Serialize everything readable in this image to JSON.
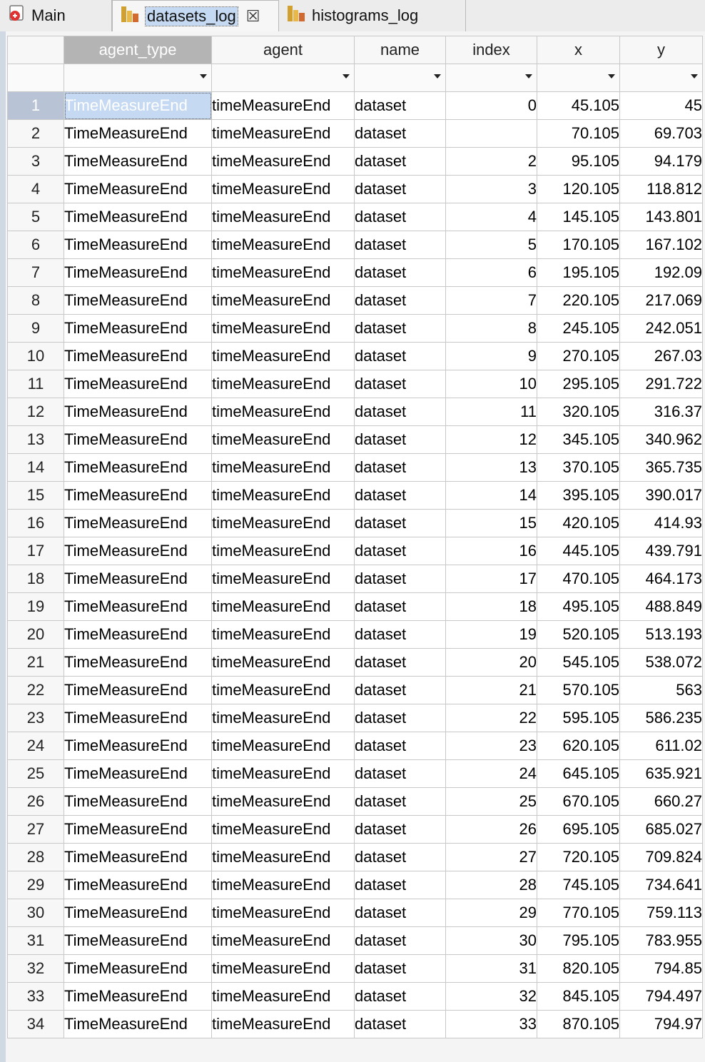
{
  "tabs": [
    {
      "label": "Main"
    },
    {
      "label": "datasets_log",
      "close": "☒"
    },
    {
      "label": "histograms_log"
    }
  ],
  "columns": [
    "agent_type",
    "agent",
    "name",
    "index",
    "x",
    "y"
  ],
  "rows": [
    [
      "TimeMeasureEnd",
      "timeMeasureEnd",
      "dataset",
      "0",
      "45.105",
      "45"
    ],
    [
      "TimeMeasureEnd",
      "timeMeasureEnd",
      "dataset",
      "",
      "70.105",
      "69.703"
    ],
    [
      "TimeMeasureEnd",
      "timeMeasureEnd",
      "dataset",
      "2",
      "95.105",
      "94.179"
    ],
    [
      "TimeMeasureEnd",
      "timeMeasureEnd",
      "dataset",
      "3",
      "120.105",
      "118.812"
    ],
    [
      "TimeMeasureEnd",
      "timeMeasureEnd",
      "dataset",
      "4",
      "145.105",
      "143.801"
    ],
    [
      "TimeMeasureEnd",
      "timeMeasureEnd",
      "dataset",
      "5",
      "170.105",
      "167.102"
    ],
    [
      "TimeMeasureEnd",
      "timeMeasureEnd",
      "dataset",
      "6",
      "195.105",
      "192.09"
    ],
    [
      "TimeMeasureEnd",
      "timeMeasureEnd",
      "dataset",
      "7",
      "220.105",
      "217.069"
    ],
    [
      "TimeMeasureEnd",
      "timeMeasureEnd",
      "dataset",
      "8",
      "245.105",
      "242.051"
    ],
    [
      "TimeMeasureEnd",
      "timeMeasureEnd",
      "dataset",
      "9",
      "270.105",
      "267.03"
    ],
    [
      "TimeMeasureEnd",
      "timeMeasureEnd",
      "dataset",
      "10",
      "295.105",
      "291.722"
    ],
    [
      "TimeMeasureEnd",
      "timeMeasureEnd",
      "dataset",
      "11",
      "320.105",
      "316.37"
    ],
    [
      "TimeMeasureEnd",
      "timeMeasureEnd",
      "dataset",
      "12",
      "345.105",
      "340.962"
    ],
    [
      "TimeMeasureEnd",
      "timeMeasureEnd",
      "dataset",
      "13",
      "370.105",
      "365.735"
    ],
    [
      "TimeMeasureEnd",
      "timeMeasureEnd",
      "dataset",
      "14",
      "395.105",
      "390.017"
    ],
    [
      "TimeMeasureEnd",
      "timeMeasureEnd",
      "dataset",
      "15",
      "420.105",
      "414.93"
    ],
    [
      "TimeMeasureEnd",
      "timeMeasureEnd",
      "dataset",
      "16",
      "445.105",
      "439.791"
    ],
    [
      "TimeMeasureEnd",
      "timeMeasureEnd",
      "dataset",
      "17",
      "470.105",
      "464.173"
    ],
    [
      "TimeMeasureEnd",
      "timeMeasureEnd",
      "dataset",
      "18",
      "495.105",
      "488.849"
    ],
    [
      "TimeMeasureEnd",
      "timeMeasureEnd",
      "dataset",
      "19",
      "520.105",
      "513.193"
    ],
    [
      "TimeMeasureEnd",
      "timeMeasureEnd",
      "dataset",
      "20",
      "545.105",
      "538.072"
    ],
    [
      "TimeMeasureEnd",
      "timeMeasureEnd",
      "dataset",
      "21",
      "570.105",
      "563"
    ],
    [
      "TimeMeasureEnd",
      "timeMeasureEnd",
      "dataset",
      "22",
      "595.105",
      "586.235"
    ],
    [
      "TimeMeasureEnd",
      "timeMeasureEnd",
      "dataset",
      "23",
      "620.105",
      "611.02"
    ],
    [
      "TimeMeasureEnd",
      "timeMeasureEnd",
      "dataset",
      "24",
      "645.105",
      "635.921"
    ],
    [
      "TimeMeasureEnd",
      "timeMeasureEnd",
      "dataset",
      "25",
      "670.105",
      "660.27"
    ],
    [
      "TimeMeasureEnd",
      "timeMeasureEnd",
      "dataset",
      "26",
      "695.105",
      "685.027"
    ],
    [
      "TimeMeasureEnd",
      "timeMeasureEnd",
      "dataset",
      "27",
      "720.105",
      "709.824"
    ],
    [
      "TimeMeasureEnd",
      "timeMeasureEnd",
      "dataset",
      "28",
      "745.105",
      "734.641"
    ],
    [
      "TimeMeasureEnd",
      "timeMeasureEnd",
      "dataset",
      "29",
      "770.105",
      "759.113"
    ],
    [
      "TimeMeasureEnd",
      "timeMeasureEnd",
      "dataset",
      "30",
      "795.105",
      "783.955"
    ],
    [
      "TimeMeasureEnd",
      "timeMeasureEnd",
      "dataset",
      "31",
      "820.105",
      "794.85"
    ],
    [
      "TimeMeasureEnd",
      "timeMeasureEnd",
      "dataset",
      "32",
      "845.105",
      "794.497"
    ],
    [
      "TimeMeasureEnd",
      "timeMeasureEnd",
      "dataset",
      "33",
      "870.105",
      "794.97"
    ]
  ],
  "colors": {
    "selection": "#c5d9f2",
    "header_selected": "#b4b4b4",
    "row_selected": "#b8c4d6"
  },
  "icons": {
    "main_tab": "database-alert-icon",
    "table_tab": "table-chart-icon"
  }
}
